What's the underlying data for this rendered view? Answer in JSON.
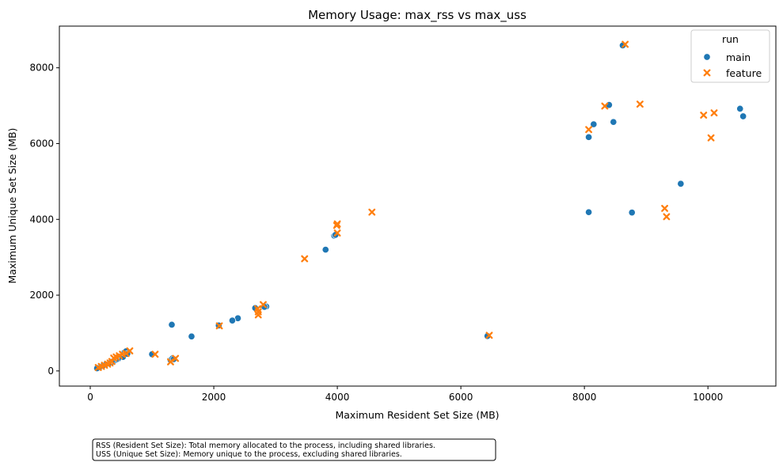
{
  "chart_data": {
    "type": "scatter",
    "title": "Memory Usage: max_rss vs max_uss",
    "xlabel": "Maximum Resident Set Size (MB)",
    "ylabel": "Maximum Unique Set Size (MB)",
    "xlim": [
      -500,
      11100
    ],
    "ylim": [
      -400,
      9100
    ],
    "xticks": [
      0,
      2000,
      4000,
      6000,
      8000,
      10000
    ],
    "yticks": [
      0,
      2000,
      4000,
      6000,
      8000
    ],
    "grid": false,
    "legend": {
      "title": "run",
      "position": "top-right",
      "entries": [
        "main",
        "feature"
      ]
    },
    "series": [
      {
        "name": "main",
        "marker": "circle",
        "color": "#1f77b4",
        "points": [
          [
            8620,
            8590
          ],
          [
            8400,
            7020
          ],
          [
            8150,
            6510
          ],
          [
            8470,
            6570
          ],
          [
            8070,
            6170
          ],
          [
            10520,
            6920
          ],
          [
            10570,
            6720
          ],
          [
            9560,
            4940
          ],
          [
            8070,
            4190
          ],
          [
            8770,
            4180
          ],
          [
            6430,
            920
          ],
          [
            3950,
            3570
          ],
          [
            3970,
            3590
          ],
          [
            3810,
            3200
          ],
          [
            2850,
            1700
          ],
          [
            2820,
            1690
          ],
          [
            2670,
            1660
          ],
          [
            2390,
            1390
          ],
          [
            2300,
            1330
          ],
          [
            2080,
            1200
          ],
          [
            1320,
            1220
          ],
          [
            1640,
            910
          ],
          [
            1000,
            440
          ],
          [
            1300,
            290
          ],
          [
            1330,
            330
          ],
          [
            1350,
            310
          ],
          [
            530,
            370
          ],
          [
            540,
            480
          ],
          [
            560,
            500
          ],
          [
            580,
            520
          ],
          [
            600,
            450
          ],
          [
            450,
            320
          ],
          [
            420,
            300
          ],
          [
            380,
            260
          ],
          [
            350,
            240
          ],
          [
            300,
            200
          ],
          [
            250,
            170
          ],
          [
            200,
            130
          ],
          [
            150,
            100
          ],
          [
            110,
            70
          ]
        ]
      },
      {
        "name": "feature",
        "marker": "x",
        "color": "#ff7f0e",
        "points": [
          [
            8660,
            8620
          ],
          [
            8330,
            6990
          ],
          [
            8900,
            7040
          ],
          [
            8070,
            6370
          ],
          [
            9930,
            6750
          ],
          [
            10100,
            6810
          ],
          [
            10050,
            6150
          ],
          [
            9300,
            4290
          ],
          [
            9330,
            4070
          ],
          [
            6460,
            940
          ],
          [
            4560,
            4190
          ],
          [
            4000,
            3880
          ],
          [
            3990,
            3840
          ],
          [
            4000,
            3640
          ],
          [
            3470,
            2960
          ],
          [
            2800,
            1750
          ],
          [
            2710,
            1640
          ],
          [
            2720,
            1560
          ],
          [
            2720,
            1480
          ],
          [
            2090,
            1190
          ],
          [
            1380,
            330
          ],
          [
            1300,
            240
          ],
          [
            1050,
            440
          ],
          [
            640,
            530
          ],
          [
            580,
            460
          ],
          [
            520,
            440
          ],
          [
            470,
            400
          ],
          [
            420,
            370
          ],
          [
            380,
            340
          ],
          [
            350,
            250
          ],
          [
            320,
            210
          ],
          [
            280,
            180
          ],
          [
            230,
            150
          ],
          [
            180,
            120
          ],
          [
            130,
            90
          ]
        ]
      }
    ],
    "annotation": [
      "RSS (Resident Set Size): Total memory allocated to the process, including shared libraries.",
      "USS (Unique Set Size): Memory unique to the process, excluding shared libraries."
    ]
  }
}
